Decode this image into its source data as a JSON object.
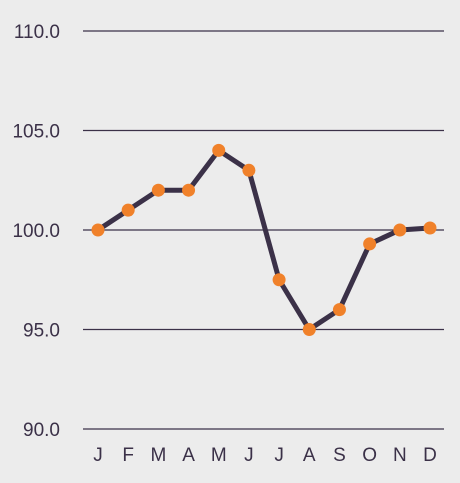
{
  "chart_data": {
    "type": "line",
    "title": "",
    "xlabel": "",
    "ylabel": "",
    "categories": [
      "J",
      "F",
      "M",
      "A",
      "M",
      "J",
      "J",
      "A",
      "S",
      "O",
      "N",
      "D"
    ],
    "series": [
      {
        "values": [
          100.0,
          101.0,
          102.0,
          102.0,
          104.0,
          103.0,
          97.5,
          95.0,
          96.0,
          99.3,
          100.0,
          100.1
        ]
      }
    ],
    "ylim": [
      90.0,
      110.0
    ],
    "yticks": [
      "110.0",
      "105.0",
      "100.0",
      "95.0",
      "90.0"
    ],
    "ytick_values": [
      110,
      105,
      100,
      95,
      90
    ],
    "grid": true,
    "line_color": "#3b3148",
    "marker_color": "#f0812a",
    "gridline_color": "#3b3148",
    "background_color": "#ececec"
  }
}
